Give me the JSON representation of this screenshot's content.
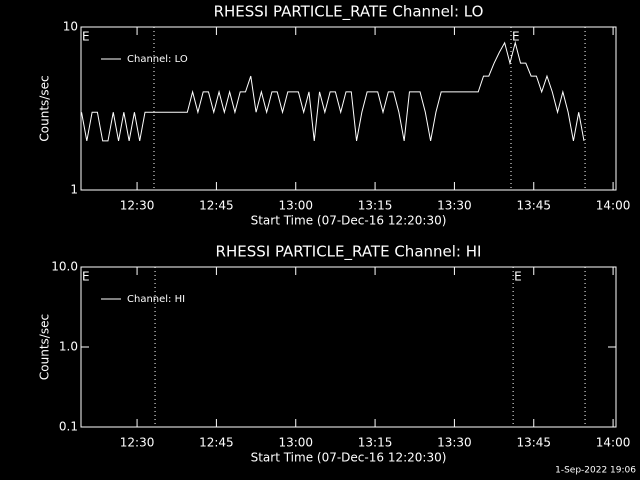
{
  "chart_data": [
    {
      "type": "line",
      "title": "RHESSI PARTICLE_RATE Channel: LO",
      "xlabel": "Start Time (07-Dec-16 12:20:30)",
      "ylabel": "Counts/sec",
      "ylog": true,
      "legend": "upper left",
      "xlim": [
        19.4,
        120.55
      ],
      "ylim": [
        1,
        10
      ],
      "xticks": [
        {
          "value": 30,
          "label": "12:30"
        },
        {
          "value": 45,
          "label": "12:45"
        },
        {
          "value": 60,
          "label": "13:00"
        },
        {
          "value": 75,
          "label": "13:15"
        },
        {
          "value": 90,
          "label": "13:30"
        },
        {
          "value": 105,
          "label": "13:45"
        },
        {
          "value": 120,
          "label": "14:00"
        }
      ],
      "yticks": [
        1,
        10
      ],
      "event_lines": [
        33.2,
        100.7,
        114.7
      ],
      "annotations": [
        {
          "text": "E",
          "x": 19.4
        },
        {
          "text": "E",
          "x": 100.7
        }
      ],
      "x": [
        19.5,
        20.5,
        21.5,
        22.5,
        23.5,
        24.5,
        25.5,
        26.5,
        27.5,
        28.5,
        29.5,
        30.5,
        31.5,
        32.5,
        33.5,
        34.5,
        35.5,
        36.5,
        37.5,
        38.5,
        39.5,
        40.5,
        41.5,
        42.5,
        43.5,
        44.5,
        45.5,
        46.5,
        47.5,
        48.5,
        49.5,
        50.5,
        51.5,
        52.5,
        53.5,
        54.5,
        55.5,
        56.5,
        57.5,
        58.5,
        59.5,
        60.5,
        61.5,
        62.5,
        63.5,
        64.5,
        65.5,
        66.5,
        67.5,
        68.5,
        69.5,
        70.5,
        71.5,
        72.5,
        73.5,
        74.5,
        75.5,
        76.5,
        77.5,
        78.5,
        79.5,
        80.5,
        81.5,
        82.5,
        83.5,
        84.5,
        85.5,
        86.5,
        87.5,
        88.5,
        89.5,
        90.5,
        91.5,
        92.5,
        93.5,
        94.5,
        95.5,
        96.5,
        97.5,
        98.5,
        99.5,
        100.5,
        101.5,
        102.5,
        103.5,
        104.5,
        105.5,
        106.5,
        107.5,
        108.5,
        109.5,
        110.5,
        111.5,
        112.5,
        113.5,
        114.5
      ],
      "series": [
        {
          "name": "Channel: LO",
          "color": "#ffffff",
          "values": [
            3,
            2,
            3,
            3,
            2,
            2,
            3,
            2,
            3,
            2,
            3,
            2,
            3,
            3,
            3,
            3,
            3,
            3,
            3,
            3,
            3,
            4,
            3,
            4,
            4,
            3,
            4,
            3,
            4,
            3,
            4,
            4,
            5,
            3,
            4,
            3,
            4,
            4,
            3,
            4,
            4,
            4,
            3,
            4,
            2,
            4,
            3,
            4,
            4,
            3,
            4,
            4,
            2,
            3,
            4,
            4,
            4,
            3,
            4,
            4,
            3,
            2,
            4,
            4,
            4,
            3,
            2,
            3,
            4,
            4,
            4,
            4,
            4,
            4,
            4,
            4,
            5,
            5,
            6,
            7,
            8,
            6,
            8,
            6,
            6,
            5,
            5,
            4,
            5,
            4,
            3,
            4,
            3,
            2,
            3,
            2
          ]
        }
      ]
    },
    {
      "type": "line",
      "title": "RHESSI PARTICLE_RATE Channel: HI",
      "xlabel": "Start Time (07-Dec-16 12:20:30)",
      "ylabel": "Counts/sec",
      "ylog": true,
      "legend": "upper left",
      "xlim": [
        19.4,
        120.55
      ],
      "ylim": [
        0.1,
        10
      ],
      "xticks": [
        {
          "value": 30,
          "label": "12:30"
        },
        {
          "value": 45,
          "label": "12:45"
        },
        {
          "value": 60,
          "label": "13:00"
        },
        {
          "value": 75,
          "label": "13:15"
        },
        {
          "value": 90,
          "label": "13:30"
        },
        {
          "value": 105,
          "label": "13:45"
        },
        {
          "value": 120,
          "label": "14:00"
        }
      ],
      "yticks": [
        0.1,
        {
          "value": 1,
          "label": "1.0"
        },
        {
          "value": 10,
          "label": "10.0"
        }
      ],
      "event_lines": [
        33.4,
        101.1,
        114.7
      ],
      "annotations": [
        {
          "text": "E",
          "x": 19.4
        },
        {
          "text": "E",
          "x": 101.1
        }
      ],
      "x": [],
      "series": [
        {
          "name": "Channel: HI",
          "color": "#ffffff",
          "values": []
        }
      ]
    }
  ],
  "footer": "1-Sep-2022 19:06"
}
